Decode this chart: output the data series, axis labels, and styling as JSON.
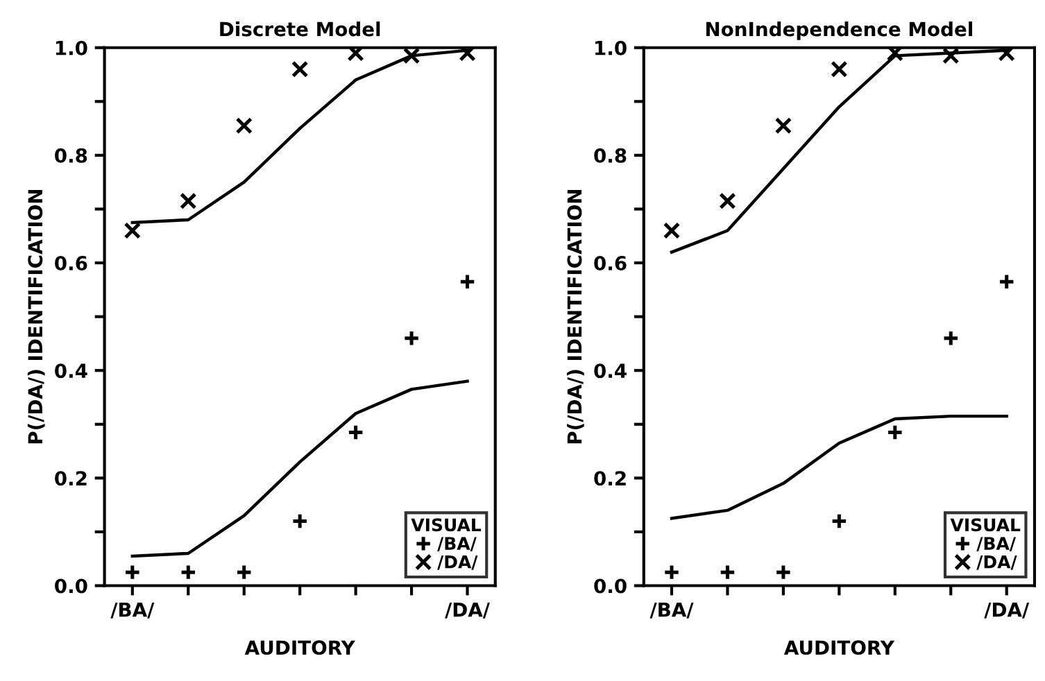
{
  "chart_data": [
    {
      "type": "scatter",
      "title": "Discrete Model",
      "xlabel": "AUDITORY",
      "ylabel": "P(/DA/) IDENTIFICATION",
      "legend_title": "VISUAL",
      "legend": "bottom right",
      "grid": false,
      "categories": [
        "/BA/",
        null,
        null,
        null,
        null,
        null,
        "/DA/"
      ],
      "ylim": [
        0,
        1
      ],
      "yticks": [
        {
          "value": 0,
          "label": "0.0"
        },
        {
          "value": 0.1,
          "label": null
        },
        0.2,
        {
          "value": 0.3,
          "label": null
        },
        0.4,
        {
          "value": 0.5,
          "label": null
        },
        0.6,
        {
          "value": 0.7,
          "label": null
        },
        0.8,
        {
          "value": 0.9,
          "label": null
        },
        {
          "value": 1,
          "label": "1.0"
        }
      ],
      "series": [
        {
          "name": "/BA/",
          "marker": "plus",
          "color": "#000000",
          "values": [
            0.025,
            0.025,
            0.025,
            0.12,
            0.285,
            0.46,
            0.565
          ]
        },
        {
          "name": "/DA/",
          "marker": "cross",
          "color": "#000000",
          "values": [
            0.66,
            0.715,
            0.855,
            0.96,
            0.99,
            0.985,
            0.99
          ]
        },
        {
          "type": "line",
          "marker": "none",
          "line_style": "solid",
          "color": "#000000",
          "values": [
            0.055,
            0.06,
            0.13,
            0.23,
            0.32,
            0.365,
            0.38
          ]
        },
        {
          "type": "line",
          "marker": "none",
          "line_style": "solid",
          "color": "#000000",
          "values": [
            0.675,
            0.68,
            0.75,
            0.85,
            0.94,
            0.985,
            0.995
          ]
        }
      ]
    },
    {
      "type": "scatter",
      "title": "NonIndependence Model",
      "xlabel": "AUDITORY",
      "ylabel": "P(/DA/) IDENTIFICATION",
      "legend_title": "VISUAL",
      "legend": "bottom right",
      "grid": false,
      "categories": [
        "/BA/",
        null,
        null,
        null,
        null,
        null,
        "/DA/"
      ],
      "ylim": [
        0,
        1
      ],
      "yticks": [
        {
          "value": 0,
          "label": "0.0"
        },
        {
          "value": 0.1,
          "label": null
        },
        0.2,
        {
          "value": 0.3,
          "label": null
        },
        0.4,
        {
          "value": 0.5,
          "label": null
        },
        0.6,
        {
          "value": 0.7,
          "label": null
        },
        0.8,
        {
          "value": 0.9,
          "label": null
        },
        {
          "value": 1,
          "label": "1.0"
        }
      ],
      "series": [
        {
          "name": "/BA/",
          "marker": "plus",
          "color": "#000000",
          "values": [
            0.025,
            0.025,
            0.025,
            0.12,
            0.285,
            0.46,
            0.565
          ]
        },
        {
          "name": "/DA/",
          "marker": "cross",
          "color": "#000000",
          "values": [
            0.66,
            0.715,
            0.855,
            0.96,
            0.99,
            0.985,
            0.99
          ]
        },
        {
          "type": "line",
          "marker": "none",
          "line_style": "solid",
          "color": "#000000",
          "values": [
            0.125,
            0.14,
            0.19,
            0.265,
            0.31,
            0.315,
            0.315
          ]
        },
        {
          "type": "line",
          "marker": "none",
          "line_style": "solid",
          "color": "#000000",
          "values": [
            0.62,
            0.66,
            0.775,
            0.89,
            0.985,
            0.99,
            0.995
          ]
        }
      ]
    }
  ]
}
